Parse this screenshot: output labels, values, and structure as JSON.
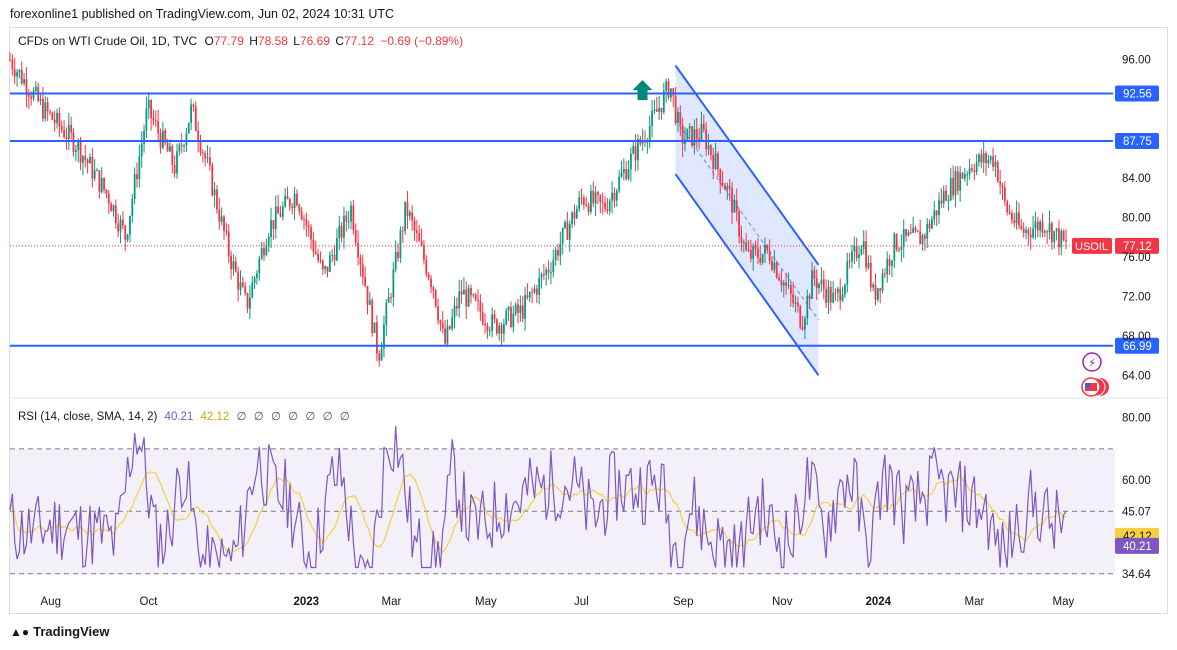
{
  "header": {
    "credit": "forexonline1 published on TradingView.com, Jun 02, 2024 10:31 UTC"
  },
  "legend": {
    "symbol": "CFDs on WTI Crude Oil, 1D, TVC",
    "open_label": "O",
    "open": "77.79",
    "high_label": "H",
    "high": "78.58",
    "low_label": "L",
    "low": "76.69",
    "close_label": "C",
    "close": "77.12",
    "change": "−0.69 (−0.89%)"
  },
  "rsi_legend": {
    "title": "RSI (14, close, SMA, 14, 2)",
    "value": "40.21",
    "sma_value": "42.12",
    "placeholders": "∅ ∅ ∅ ∅ ∅ ∅ ∅"
  },
  "footer": {
    "brand": "TradingView"
  },
  "colors": {
    "up": "#089981",
    "down": "#f23645",
    "level_line": "#2962ff",
    "rsi": "#7e57c2",
    "rsi_ma": "#f5d142",
    "channel_fill": "#2962ff",
    "label_bg": "#2962ff",
    "price_label": "#f23645"
  },
  "chart_data": [
    {
      "type": "candlestick",
      "title": "CFDs on WTI Crude Oil, 1D, TVC",
      "ticker": "USOIL",
      "last_price": 77.12,
      "ylim": [
        62,
        99
      ],
      "y_ticks": [
        "96.00",
        "84.00",
        "80.00",
        "76.00",
        "72.00",
        "68.00",
        "64.00"
      ],
      "x_ticks": [
        "Aug",
        "Oct",
        "2023",
        "Mar",
        "May",
        "Jul",
        "Sep",
        "Nov",
        "2024",
        "Mar",
        "May"
      ],
      "horizontal_levels": [
        {
          "label": "92.56",
          "value": 92.56
        },
        {
          "label": "87.75",
          "value": 87.75
        },
        {
          "label": "66.99",
          "value": 66.99
        }
      ],
      "descending_channel": {
        "upper": [
          [
            0.605,
            95.4
          ],
          [
            0.735,
            75.2
          ]
        ],
        "lower": [
          [
            0.605,
            84.4
          ],
          [
            0.735,
            64.0
          ]
        ]
      },
      "key_prices": [
        {
          "t": 0.0,
          "p": 96.0
        },
        {
          "t": 0.03,
          "p": 91.0
        },
        {
          "t": 0.06,
          "p": 87.5
        },
        {
          "t": 0.09,
          "p": 82.0
        },
        {
          "t": 0.105,
          "p": 78.0
        },
        {
          "t": 0.125,
          "p": 91.0
        },
        {
          "t": 0.15,
          "p": 85.0
        },
        {
          "t": 0.165,
          "p": 91.0
        },
        {
          "t": 0.18,
          "p": 85.0
        },
        {
          "t": 0.2,
          "p": 76.0
        },
        {
          "t": 0.215,
          "p": 71.0
        },
        {
          "t": 0.235,
          "p": 79.0
        },
        {
          "t": 0.26,
          "p": 82.5
        },
        {
          "t": 0.285,
          "p": 74.0
        },
        {
          "t": 0.31,
          "p": 81.0
        },
        {
          "t": 0.335,
          "p": 66.0
        },
        {
          "t": 0.36,
          "p": 81.0
        },
        {
          "t": 0.385,
          "p": 73.0
        },
        {
          "t": 0.395,
          "p": 67.0
        },
        {
          "t": 0.41,
          "p": 72.5
        },
        {
          "t": 0.44,
          "p": 69.0
        },
        {
          "t": 0.465,
          "p": 70.5
        },
        {
          "t": 0.49,
          "p": 75.0
        },
        {
          "t": 0.52,
          "p": 82.0
        },
        {
          "t": 0.54,
          "p": 81.0
        },
        {
          "t": 0.56,
          "p": 85.0
        },
        {
          "t": 0.585,
          "p": 90.0
        },
        {
          "t": 0.6,
          "p": 93.5
        },
        {
          "t": 0.61,
          "p": 88.0
        },
        {
          "t": 0.63,
          "p": 88.5
        },
        {
          "t": 0.655,
          "p": 82.0
        },
        {
          "t": 0.67,
          "p": 76.0
        },
        {
          "t": 0.69,
          "p": 76.5
        },
        {
          "t": 0.705,
          "p": 73.0
        },
        {
          "t": 0.72,
          "p": 69.5
        },
        {
          "t": 0.73,
          "p": 74.0
        },
        {
          "t": 0.75,
          "p": 71.5
        },
        {
          "t": 0.775,
          "p": 78.0
        },
        {
          "t": 0.785,
          "p": 72.0
        },
        {
          "t": 0.805,
          "p": 77.5
        },
        {
          "t": 0.83,
          "p": 78.0
        },
        {
          "t": 0.85,
          "p": 82.5
        },
        {
          "t": 0.875,
          "p": 85.5
        },
        {
          "t": 0.895,
          "p": 86.0
        },
        {
          "t": 0.905,
          "p": 81.0
        },
        {
          "t": 0.92,
          "p": 78.5
        },
        {
          "t": 0.94,
          "p": 79.5
        },
        {
          "t": 0.96,
          "p": 77.12
        }
      ]
    },
    {
      "type": "line",
      "title": "RSI (14, close, SMA, 14, 2)",
      "ylim": [
        28,
        85
      ],
      "y_ticks": [
        "80.00",
        "60.00",
        "45.07",
        "42.12",
        "40.21",
        "34.64"
      ],
      "bands": {
        "upper": 70,
        "middle": 50,
        "lower": 30
      },
      "series": [
        {
          "name": "RSI",
          "last": 40.21
        },
        {
          "name": "RSI-based MA",
          "last": 42.12
        }
      ]
    }
  ]
}
